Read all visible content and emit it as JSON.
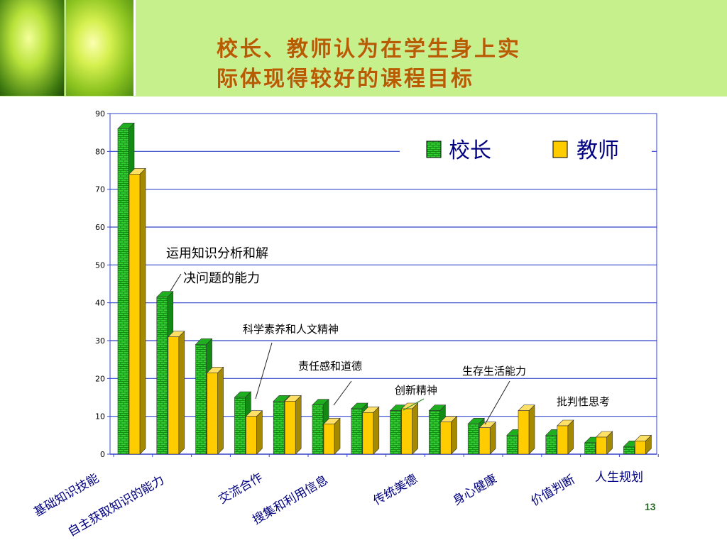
{
  "slide": {
    "title_line1": "校长、教师认为在学生身上实",
    "title_line2": "际体现得较好的课程目标",
    "page_number": "13"
  },
  "colors": {
    "header_bg": "#c6f08c",
    "title": "#b85c00",
    "principal": "#33cc33",
    "teacher": "#ffcc00",
    "gridline": "#3344cc",
    "annotation": "#000000"
  },
  "chart_data": {
    "type": "bar",
    "bar_style": "3d",
    "grid": true,
    "ylim": [
      0,
      90
    ],
    "yticks": [
      0,
      10,
      20,
      30,
      40,
      50,
      60,
      70,
      80,
      90
    ],
    "legend_position": "top-right",
    "categories": [
      "基础知识技能",
      "自主获取知识的能力",
      "运用知识分析和解决问题的能力",
      "交流合作",
      "科学素养和人文精神",
      "搜集和利用信息",
      "责任感和道德",
      "传统美德",
      "创新精神",
      "身心健康",
      "生存生活能力",
      "价值判断",
      "批判性思考",
      "人生规划"
    ],
    "x_tick_labels": [
      "基础知识技能",
      "自主获取知识的能力",
      "交流合作",
      "搜集和利用信息",
      "传统美德",
      "身心健康",
      "价值判断",
      "人生规划"
    ],
    "series": [
      {
        "name": "校长",
        "values": [
          86,
          41.5,
          29,
          15,
          14,
          13,
          12,
          11.5,
          11.5,
          8,
          5,
          5,
          3,
          2
        ]
      },
      {
        "name": "教师",
        "values": [
          74,
          31,
          21.5,
          10,
          14,
          8,
          11,
          12,
          8.5,
          7,
          11.5,
          7.5,
          4.5,
          3.5
        ]
      }
    ],
    "annotations": [
      {
        "text": "运用知识分析和解\n决问题的能力",
        "category": "运用知识分析和解决问题的能力"
      },
      {
        "text": "科学素养和人文精神",
        "category": "科学素养和人文精神"
      },
      {
        "text": "责任感和道德",
        "category": "责任感和道德"
      },
      {
        "text": "创新精神",
        "category": "创新精神"
      },
      {
        "text": "生存生活能力",
        "category": "生存生活能力"
      },
      {
        "text": "批判性思考",
        "category": "批判性思考"
      }
    ]
  }
}
